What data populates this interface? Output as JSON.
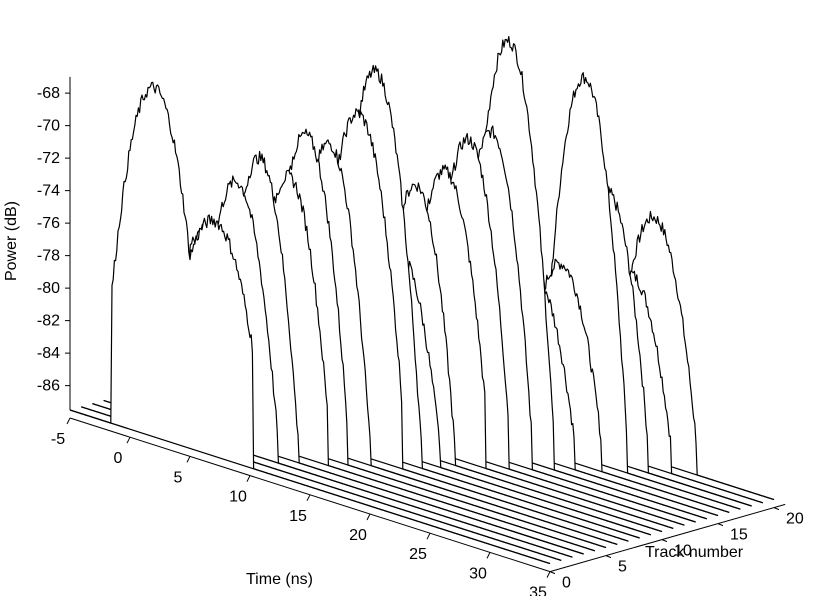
{
  "chart_data": {
    "type": "waterfall-line",
    "ylabel": "Power (dB)",
    "xlabel": "Time (ns)",
    "zlabel": "Track number",
    "xlim": [
      -5,
      35
    ],
    "zlim": [
      0,
      20
    ],
    "ylim": [
      -87,
      -67
    ],
    "x_ticks": [
      -5,
      0,
      5,
      10,
      15,
      20,
      25,
      30,
      35
    ],
    "y_ticks": [
      -86,
      -84,
      -82,
      -80,
      -78,
      -76,
      -74,
      -72,
      -70,
      -68
    ],
    "z_ticks": [
      0,
      5,
      10,
      15,
      20
    ],
    "grid": false,
    "line_color": "#000000",
    "series": [
      {
        "track": 0,
        "baseline_db": -87.5,
        "pulses": [
          {
            "t": 2.0,
            "peak_db": -66.0,
            "width_ns": 3.6
          },
          {
            "t": 7.0,
            "peak_db": -73.0,
            "width_ns": 3.2
          }
        ],
        "floor_db": -80.0
      },
      {
        "track": 1,
        "baseline_db": -87.5,
        "pulses": [
          {
            "t": 5.5,
            "peak_db": -74.0,
            "width_ns": 3.4
          }
        ],
        "floor_db": -84.0
      },
      {
        "track": 2,
        "baseline_db": -87.5,
        "pulses": [
          {
            "t": 7.0,
            "peak_db": -71.0,
            "width_ns": 3.4
          }
        ],
        "floor_db": -85.5
      },
      {
        "track": 3,
        "baseline_db": -87.5,
        "pulses": [
          {
            "t": 8.0,
            "peak_db": -69.5,
            "width_ns": 3.2
          }
        ],
        "floor_db": -86.0
      },
      {
        "track": 4,
        "baseline_db": -87.5,
        "pulses": [
          {
            "t": 9.5,
            "peak_db": -70.5,
            "width_ns": 3.2
          }
        ],
        "floor_db": -84.0
      },
      {
        "track": 5,
        "baseline_db": -87.5,
        "pulses": [
          {
            "t": 10.0,
            "peak_db": -68.0,
            "width_ns": 3.4
          }
        ],
        "floor_db": -84.5
      },
      {
        "track": 6,
        "baseline_db": -87.5,
        "pulses": [
          {
            "t": 11.0,
            "peak_db": -68.5,
            "width_ns": 3.4
          }
        ],
        "floor_db": -86.0
      },
      {
        "track": 7,
        "baseline_db": -87.5,
        "pulses": [
          {
            "t": 12.5,
            "peak_db": -66.5,
            "width_ns": 3.6
          }
        ],
        "floor_db": -83.0
      },
      {
        "track": 8,
        "baseline_db": -87.5,
        "pulses": [
          {
            "t": 13.0,
            "peak_db": -64.0,
            "width_ns": 3.8
          }
        ],
        "floor_db": -86.0
      },
      {
        "track": 9,
        "baseline_db": -87.5,
        "pulses": [
          {
            "t": 14.0,
            "peak_db": -75.0,
            "width_ns": 3.4
          }
        ],
        "floor_db": -86.0
      },
      {
        "track": 10,
        "baseline_db": -87.5,
        "pulses": [
          {
            "t": 14.5,
            "peak_db": -71.0,
            "width_ns": 3.2
          }
        ],
        "floor_db": -86.0
      },
      {
        "track": 11,
        "baseline_db": -87.5,
        "pulses": [
          {
            "t": 16.0,
            "peak_db": -70.0,
            "width_ns": 3.4
          }
        ],
        "floor_db": -84.0
      },
      {
        "track": 12,
        "baseline_db": -87.5,
        "pulses": [
          {
            "t": 17.0,
            "peak_db": -68.0,
            "width_ns": 3.4
          }
        ],
        "floor_db": -85.0
      },
      {
        "track": 13,
        "baseline_db": -87.5,
        "pulses": [
          {
            "t": 18.0,
            "peak_db": -67.5,
            "width_ns": 3.4
          }
        ],
        "floor_db": -86.0
      },
      {
        "track": 14,
        "baseline_db": -87.5,
        "pulses": [
          {
            "t": 18.5,
            "peak_db": -62.0,
            "width_ns": 3.8
          }
        ],
        "floor_db": -86.0
      },
      {
        "track": 15,
        "baseline_db": -87.5,
        "pulses": [
          {
            "t": 19.5,
            "peak_db": -76.0,
            "width_ns": 3.6
          }
        ],
        "floor_db": -86.0
      },
      {
        "track": 16,
        "baseline_db": -87.5,
        "pulses": [
          {
            "t": 21.0,
            "peak_db": -75.5,
            "width_ns": 3.4
          }
        ],
        "floor_db": -86.0
      },
      {
        "track": 17,
        "baseline_db": -87.5,
        "pulses": [
          {
            "t": 22.0,
            "peak_db": -64.0,
            "width_ns": 3.6
          }
        ],
        "floor_db": -86.0
      },
      {
        "track": 18,
        "baseline_db": -87.5,
        "pulses": [
          {
            "t": 23.0,
            "peak_db": -71.0,
            "width_ns": 3.4
          }
        ],
        "floor_db": -86.0
      },
      {
        "track": 19,
        "baseline_db": -87.5,
        "pulses": [
          {
            "t": 24.0,
            "peak_db": -76.0,
            "width_ns": 3.4
          }
        ],
        "floor_db": -86.0
      },
      {
        "track": 20,
        "baseline_db": -87.5,
        "pulses": [
          {
            "t": 25.0,
            "peak_db": -72.5,
            "width_ns": 3.6
          }
        ],
        "floor_db": -86.0
      }
    ]
  }
}
